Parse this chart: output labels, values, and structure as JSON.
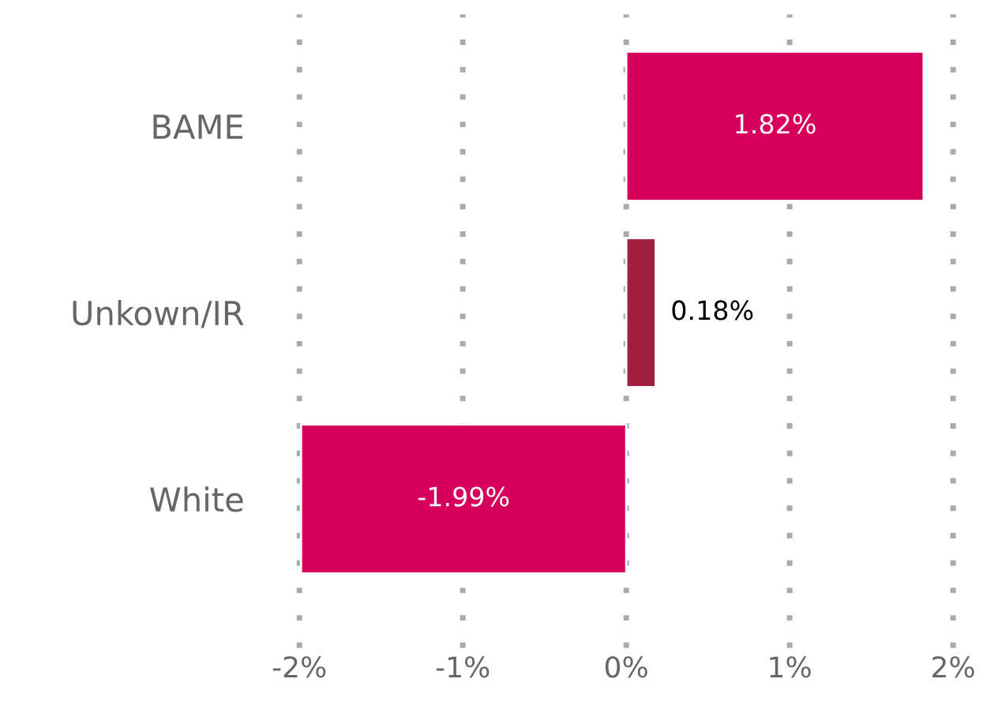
{
  "chart_data": {
    "type": "bar",
    "orientation": "horizontal",
    "categories": [
      "BAME",
      "Unkown/IR",
      "White"
    ],
    "values": [
      1.82,
      0.18,
      -1.99
    ],
    "colors": [
      "#d6005c",
      "#9e1f3f",
      "#d6005c"
    ],
    "value_labels": [
      "1.82%",
      "0.18%",
      "-1.99%"
    ],
    "xlim": [
      -2,
      2
    ],
    "xticks": [
      {
        "value": -2,
        "label": "-2%"
      },
      {
        "value": -1,
        "label": "-1%"
      },
      {
        "value": 0,
        "label": "0%"
      },
      {
        "value": 1,
        "label": "1%"
      },
      {
        "value": 2,
        "label": "2%"
      }
    ],
    "grid": "x",
    "line_style": "dotted"
  }
}
